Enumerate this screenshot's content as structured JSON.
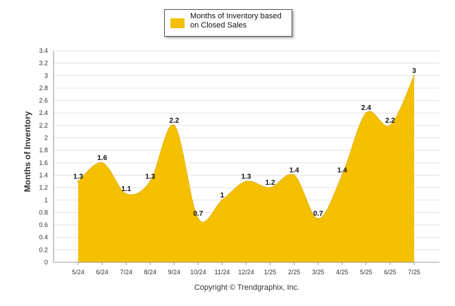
{
  "chart_data": {
    "type": "area",
    "series": [
      {
        "name": "Months of Inventory based on Closed Sales",
        "color": "#f5c000",
        "values": [
          1.3,
          1.6,
          1.1,
          1.3,
          2.2,
          0.7,
          1,
          1.3,
          1.2,
          1.4,
          0.7,
          1.4,
          2.4,
          2.2,
          3
        ],
        "labels": [
          "1.3",
          "1.6",
          "1.1",
          "1.3",
          "2.2",
          "0.7",
          "1",
          "1.3",
          "1.2",
          "1.4",
          "0.7",
          "1.4",
          "2.4",
          "2.2",
          "3"
        ]
      }
    ],
    "categories": [
      "5/24",
      "6/24",
      "7/24",
      "8/24",
      "9/24",
      "10/24",
      "11/24",
      "12/24",
      "1/25",
      "2/25",
      "3/25",
      "4/25",
      "5/25",
      "6/25",
      "7/25"
    ],
    "ylabel": "Months of Inventory",
    "xlabel": "",
    "ylim": [
      0,
      3.4
    ],
    "yticks": [
      "0",
      "0.2",
      "0.4",
      "0.6",
      "0.8",
      "1",
      "1.2",
      "1.4",
      "1.6",
      "1.8",
      "2",
      "2.2",
      "2.4",
      "2.6",
      "2.8",
      "3",
      "3.2",
      "3.4"
    ],
    "grid": true,
    "legend_position": "top-center"
  },
  "footer": {
    "copyright": "Copyright © Trendgraphix, Inc."
  }
}
